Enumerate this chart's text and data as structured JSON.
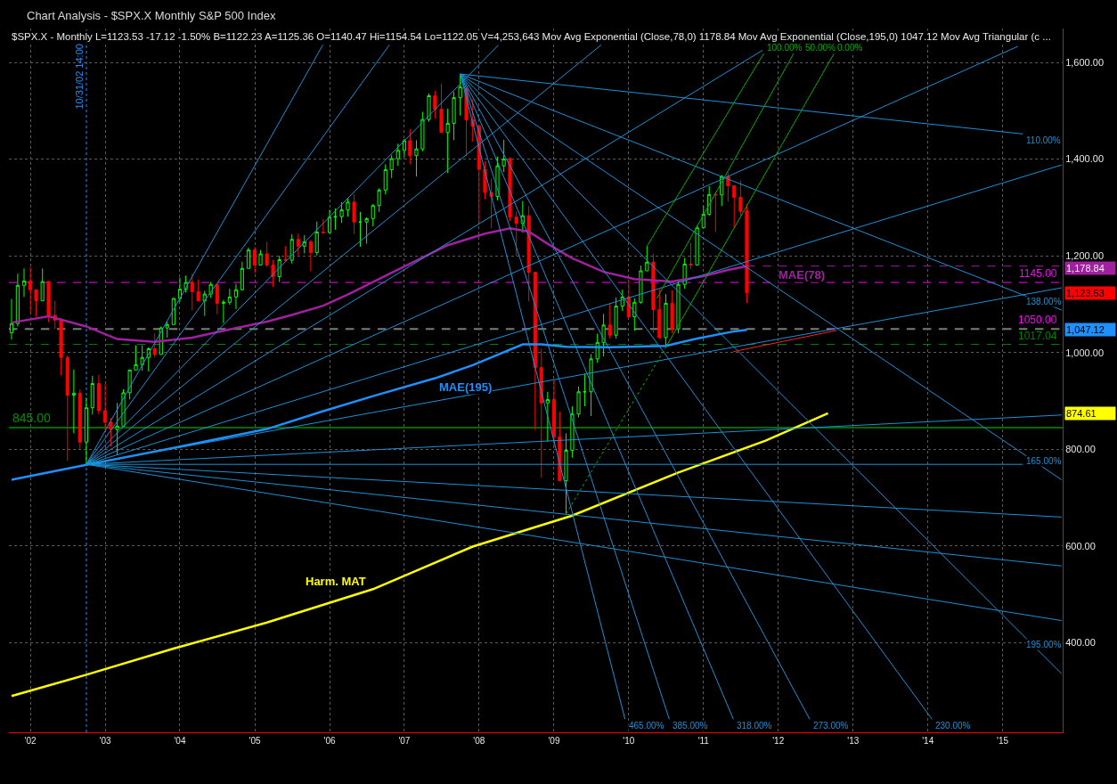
{
  "chart_data": {
    "type": "candlestick",
    "title": "Chart Analysis - $SPX.X Monthly S&P 500 Index",
    "subtitle": "$SPX.X - Monthly L=1123.53 -17.12 -1.50% B=1122.23 A=1125.36 O=1140.47 Hi=1154.54 Lo=1122.05 V=4,253,643 Mov Avg Exponential (Close,78,0) 1178.84 Mov Avg Exponential (Close,195,0) 1047.12 Mov Avg Triangular (c ...",
    "x": [
      "2001-10-31",
      "2001-11-30",
      "2001-12-31",
      "2002-01-31",
      "2002-02-28",
      "2002-03-31",
      "2002-04-30",
      "2002-05-31",
      "2002-06-30",
      "2002-07-31",
      "2002-08-31",
      "2002-09-30",
      "2002-10-31",
      "2002-11-30",
      "2002-12-31",
      "2003-01-31",
      "2003-02-28",
      "2003-03-31",
      "2003-04-30",
      "2003-05-31",
      "2003-06-30",
      "2003-07-31",
      "2003-08-31",
      "2003-09-30",
      "2003-10-31",
      "2003-11-30",
      "2003-12-31",
      "2004-01-31",
      "2004-02-29",
      "2004-03-31",
      "2004-04-30",
      "2004-05-31",
      "2004-06-30",
      "2004-07-31",
      "2004-08-31",
      "2004-09-30",
      "2004-10-31",
      "2004-11-30",
      "2004-12-31",
      "2005-01-31",
      "2005-02-28",
      "2005-03-31",
      "2005-04-30",
      "2005-05-31",
      "2005-06-30",
      "2005-07-31",
      "2005-08-31",
      "2005-09-30",
      "2005-10-31",
      "2005-11-30",
      "2005-12-31",
      "2006-01-31",
      "2006-02-28",
      "2006-03-31",
      "2006-04-30",
      "2006-05-31",
      "2006-06-30",
      "2006-07-31",
      "2006-08-31",
      "2006-09-30",
      "2006-10-31",
      "2006-11-30",
      "2006-12-31",
      "2007-01-31",
      "2007-02-28",
      "2007-03-31",
      "2007-04-30",
      "2007-05-31",
      "2007-06-30",
      "2007-07-31",
      "2007-08-31",
      "2007-09-30",
      "2007-10-31",
      "2007-11-30",
      "2007-12-31",
      "2008-01-31",
      "2008-02-29",
      "2008-03-31",
      "2008-04-30",
      "2008-05-31",
      "2008-06-30",
      "2008-07-31",
      "2008-08-31",
      "2008-09-30",
      "2008-10-31",
      "2008-11-30",
      "2008-12-31",
      "2009-01-31",
      "2009-02-28",
      "2009-03-31",
      "2009-04-30",
      "2009-05-31",
      "2009-06-30",
      "2009-07-31",
      "2009-08-31",
      "2009-09-30",
      "2009-10-31",
      "2009-11-30",
      "2009-12-31",
      "2010-01-31",
      "2010-02-28",
      "2010-03-31",
      "2010-04-30",
      "2010-05-31",
      "2010-06-30",
      "2010-07-31",
      "2010-08-31",
      "2010-09-30",
      "2010-10-31",
      "2010-11-30",
      "2010-12-31",
      "2011-01-31",
      "2011-02-28",
      "2011-03-31",
      "2011-04-30",
      "2011-05-31",
      "2011-06-30",
      "2011-07-31",
      "2011-08-31"
    ],
    "ohlc": [
      [
        1041,
        1111,
        1027,
        1060
      ],
      [
        1060,
        1163,
        1054,
        1139
      ],
      [
        1139,
        1174,
        1115,
        1148
      ],
      [
        1148,
        1177,
        1082,
        1130
      ],
      [
        1130,
        1130,
        1074,
        1107
      ],
      [
        1107,
        1174,
        1107,
        1147
      ],
      [
        1147,
        1148,
        1063,
        1077
      ],
      [
        1077,
        1107,
        1049,
        1067
      ],
      [
        1067,
        1071,
        953,
        990
      ],
      [
        990,
        994,
        776,
        912
      ],
      [
        912,
        965,
        833,
        916
      ],
      [
        916,
        924,
        800,
        815
      ],
      [
        815,
        907,
        769,
        886
      ],
      [
        886,
        952,
        872,
        936
      ],
      [
        936,
        954,
        872,
        880
      ],
      [
        880,
        935,
        840,
        856
      ],
      [
        856,
        865,
        806,
        841
      ],
      [
        841,
        896,
        789,
        848
      ],
      [
        848,
        924,
        848,
        917
      ],
      [
        917,
        965,
        903,
        964
      ],
      [
        964,
        1015,
        964,
        975
      ],
      [
        975,
        1015,
        962,
        990
      ],
      [
        990,
        1011,
        961,
        1008
      ],
      [
        1008,
        1040,
        990,
        996
      ],
      [
        996,
        1054,
        996,
        1051
      ],
      [
        1051,
        1064,
        1031,
        1058
      ],
      [
        1058,
        1113,
        1058,
        1112
      ],
      [
        1112,
        1155,
        1105,
        1131
      ],
      [
        1131,
        1159,
        1124,
        1145
      ],
      [
        1145,
        1163,
        1087,
        1126
      ],
      [
        1126,
        1151,
        1107,
        1107
      ],
      [
        1107,
        1128,
        1076,
        1121
      ],
      [
        1121,
        1146,
        1113,
        1141
      ],
      [
        1141,
        1141,
        1079,
        1102
      ],
      [
        1102,
        1109,
        1061,
        1104
      ],
      [
        1104,
        1132,
        1099,
        1115
      ],
      [
        1115,
        1142,
        1090,
        1130
      ],
      [
        1130,
        1188,
        1128,
        1174
      ],
      [
        1174,
        1217,
        1174,
        1212
      ],
      [
        1212,
        1218,
        1164,
        1181
      ],
      [
        1181,
        1212,
        1181,
        1204
      ],
      [
        1204,
        1229,
        1177,
        1181
      ],
      [
        1181,
        1192,
        1136,
        1157
      ],
      [
        1157,
        1200,
        1146,
        1192
      ],
      [
        1192,
        1220,
        1188,
        1191
      ],
      [
        1191,
        1245,
        1184,
        1234
      ],
      [
        1234,
        1246,
        1201,
        1220
      ],
      [
        1220,
        1243,
        1205,
        1229
      ],
      [
        1229,
        1233,
        1168,
        1207
      ],
      [
        1207,
        1271,
        1201,
        1249
      ],
      [
        1249,
        1276,
        1247,
        1248
      ],
      [
        1248,
        1295,
        1246,
        1280
      ],
      [
        1280,
        1298,
        1254,
        1281
      ],
      [
        1281,
        1311,
        1268,
        1295
      ],
      [
        1295,
        1318,
        1281,
        1311
      ],
      [
        1311,
        1327,
        1245,
        1270
      ],
      [
        1270,
        1291,
        1219,
        1270
      ],
      [
        1270,
        1280,
        1225,
        1277
      ],
      [
        1277,
        1307,
        1261,
        1304
      ],
      [
        1304,
        1340,
        1291,
        1336
      ],
      [
        1336,
        1389,
        1327,
        1378
      ],
      [
        1378,
        1408,
        1361,
        1401
      ],
      [
        1401,
        1432,
        1386,
        1418
      ],
      [
        1418,
        1442,
        1404,
        1438
      ],
      [
        1438,
        1462,
        1389,
        1407
      ],
      [
        1407,
        1439,
        1364,
        1421
      ],
      [
        1421,
        1498,
        1416,
        1482
      ],
      [
        1482,
        1536,
        1477,
        1531
      ],
      [
        1531,
        1541,
        1484,
        1503
      ],
      [
        1503,
        1556,
        1454,
        1455
      ],
      [
        1455,
        1504,
        1371,
        1474
      ],
      [
        1474,
        1539,
        1439,
        1527
      ],
      [
        1527,
        1576,
        1490,
        1549
      ],
      [
        1546,
        1546,
        1406,
        1481
      ],
      [
        1481,
        1524,
        1436,
        1468
      ],
      [
        1468,
        1472,
        1270,
        1379
      ],
      [
        1379,
        1396,
        1317,
        1331
      ],
      [
        1331,
        1360,
        1257,
        1323
      ],
      [
        1323,
        1405,
        1315,
        1386
      ],
      [
        1386,
        1440,
        1373,
        1400
      ],
      [
        1400,
        1404,
        1272,
        1280
      ],
      [
        1280,
        1292,
        1200,
        1267
      ],
      [
        1267,
        1313,
        1248,
        1283
      ],
      [
        1283,
        1303,
        1106,
        1166
      ],
      [
        1166,
        1167,
        840,
        969
      ],
      [
        969,
        1008,
        741,
        896
      ],
      [
        896,
        919,
        816,
        903
      ],
      [
        903,
        944,
        804,
        826
      ],
      [
        826,
        878,
        735,
        735
      ],
      [
        735,
        833,
        667,
        798
      ],
      [
        798,
        889,
        783,
        873
      ],
      [
        873,
        930,
        866,
        919
      ],
      [
        919,
        956,
        889,
        919
      ],
      [
        919,
        997,
        869,
        987
      ],
      [
        987,
        1039,
        979,
        1021
      ],
      [
        1021,
        1080,
        992,
        1057
      ],
      [
        1057,
        1101,
        1029,
        1036
      ],
      [
        1036,
        1114,
        1029,
        1096
      ],
      [
        1096,
        1130,
        1086,
        1115
      ],
      [
        1115,
        1150,
        1072,
        1074
      ],
      [
        1074,
        1112,
        1045,
        1104
      ],
      [
        1104,
        1180,
        1101,
        1169
      ],
      [
        1169,
        1220,
        1169,
        1187
      ],
      [
        1187,
        1205,
        1041,
        1089
      ],
      [
        1089,
        1131,
        1028,
        1031
      ],
      [
        1031,
        1121,
        1011,
        1102
      ],
      [
        1102,
        1129,
        1040,
        1049
      ],
      [
        1049,
        1149,
        1040,
        1141
      ],
      [
        1141,
        1196,
        1132,
        1183
      ],
      [
        1183,
        1227,
        1173,
        1181
      ],
      [
        1181,
        1263,
        1181,
        1258
      ],
      [
        1258,
        1303,
        1258,
        1286
      ],
      [
        1286,
        1344,
        1283,
        1327
      ],
      [
        1327,
        1332,
        1249,
        1326
      ],
      [
        1326,
        1367,
        1303,
        1364
      ],
      [
        1364,
        1371,
        1312,
        1345
      ],
      [
        1345,
        1345,
        1258,
        1321
      ],
      [
        1321,
        1356,
        1283,
        1292
      ],
      [
        1293,
        1307,
        1102,
        1123.53
      ]
    ],
    "colors": [
      "#00ff00",
      "#00ff00",
      "#00ff00",
      "#ff0000",
      "#ff0000",
      "#00ff00",
      "#ff0000",
      "#ff0000",
      "#ff0000",
      "#ff0000",
      "#00ff00",
      "#ff0000",
      "#00ff00",
      "#00ff00",
      "#ff0000",
      "#ff0000",
      "#ff0000",
      "#00ff00",
      "#00ff00",
      "#00ff00",
      "#00ff00",
      "#00ff00",
      "#00ff00",
      "#ff0000",
      "#00ff00",
      "#00ff00",
      "#00ff00",
      "#00ff00",
      "#00ff00",
      "#ff0000",
      "#ff0000",
      "#00ff00",
      "#00ff00",
      "#ff0000",
      "#00ff00",
      "#00ff00",
      "#00ff00",
      "#00ff00",
      "#00ff00",
      "#ff0000",
      "#00ff00",
      "#ff0000",
      "#ff0000",
      "#00ff00",
      "#ff0000",
      "#00ff00",
      "#ff0000",
      "#00ff00",
      "#ff0000",
      "#00ff00",
      "#ff0000",
      "#00ff00",
      "#00ff00",
      "#00ff00",
      "#00ff00",
      "#ff0000",
      "#00ff00",
      "#00ff00",
      "#00ff00",
      "#00ff00",
      "#00ff00",
      "#00ff00",
      "#00ff00",
      "#00ff00",
      "#ff0000",
      "#00ff00",
      "#00ff00",
      "#00ff00",
      "#ff0000",
      "#ff0000",
      "#00ff00",
      "#00ff00",
      "#00ff00",
      "#ff0000",
      "#ff0000",
      "#ff0000",
      "#ff0000",
      "#ff0000",
      "#00ff00",
      "#00ff00",
      "#ff0000",
      "#ff0000",
      "#00ff00",
      "#ff0000",
      "#ff0000",
      "#ff0000",
      "#00ff00",
      "#ff0000",
      "#ff0000",
      "#00ff00",
      "#00ff00",
      "#00ff00",
      "#00ff00",
      "#00ff00",
      "#00ff00",
      "#00ff00",
      "#ff0000",
      "#00ff00",
      "#00ff00",
      "#ff0000",
      "#00ff00",
      "#00ff00",
      "#00ff00",
      "#ff0000",
      "#ff0000",
      "#00ff00",
      "#ff0000",
      "#00ff00",
      "#00ff00",
      "#ff0000",
      "#00ff00",
      "#00ff00",
      "#00ff00",
      "#ff0000",
      "#00ff00",
      "#ff0000",
      "#ff0000",
      "#ff0000",
      "#ff0000"
    ],
    "value_labels": [
      null,
      null,
      null,
      null,
      null,
      null,
      null,
      null,
      null,
      null,
      null,
      null,
      null,
      null,
      null,
      null,
      null,
      null,
      null,
      null,
      null,
      null,
      null,
      null,
      null,
      null,
      null,
      null,
      null,
      null,
      null,
      null,
      null,
      null,
      null,
      null,
      null,
      null,
      null,
      null,
      null,
      null,
      null,
      null,
      null,
      null,
      null,
      null,
      null,
      null,
      null,
      null,
      null,
      null,
      null,
      null,
      null,
      null,
      null,
      null,
      null,
      null,
      null,
      null,
      null,
      null,
      null,
      null,
      null,
      null,
      null,
      null,
      null,
      null,
      null,
      null,
      null,
      null,
      null,
      null,
      null,
      null,
      null,
      null,
      null,
      null,
      null,
      null,
      null,
      null,
      null,
      null,
      null,
      null,
      null,
      null,
      null,
      null,
      null,
      null,
      null,
      null,
      null,
      null,
      null,
      null,
      null,
      null,
      null,
      null,
      null,
      null,
      null,
      null,
      null,
      null,
      null,
      null,
      "1,123.53"
    ],
    "series": [
      {
        "type": "line",
        "name": "MAE(78)",
        "color": "#a020a0",
        "x": [
          "2001-10-31",
          "2002-04-30",
          "2002-10-31",
          "2003-03-31",
          "2003-09-30",
          "2004-03-31",
          "2004-09-30",
          "2005-03-31",
          "2005-07-31",
          "2005-12-31",
          "2006-04-30",
          "2006-11-30",
          "2007-08-31",
          "2008-02-29",
          "2008-06-30",
          "2008-09-30",
          "2008-12-31",
          "2009-04-30",
          "2009-09-30",
          "2010-02-28",
          "2010-08-31",
          "2011-01-31",
          "2011-05-31",
          "2011-08-31"
        ],
        "values": [
          1062,
          1075,
          1054,
          1028,
          1022,
          1031,
          1048,
          1064,
          1078,
          1097,
          1120,
          1165,
          1222,
          1246,
          1257,
          1250,
          1225,
          1195,
          1167,
          1152,
          1147,
          1158,
          1171,
          1178.84
        ]
      },
      {
        "type": "line",
        "name": "MAE(195)",
        "color": "#1e90ff",
        "x": [
          "2001-10-31",
          "2002-10-31",
          "2003-12-31",
          "2005-03-31",
          "2005-12-31",
          "2006-08-31",
          "2007-06-30",
          "2007-12-31",
          "2008-08-31",
          "2008-11-30",
          "2009-03-31",
          "2009-10-31",
          "2010-07-31",
          "2010-12-31",
          "2011-06-30",
          "2011-08-31"
        ],
        "values": [
          737,
          768,
          803,
          842,
          879,
          910,
          947,
          974,
          1017,
          1017,
          1012,
          1011,
          1014,
          1029,
          1044,
          1047.12
        ]
      },
      {
        "type": "line",
        "name": "Harm. MAT",
        "color": "#ffff00",
        "x": [
          "2001-10-31",
          "2002-10-31",
          "2003-12-31",
          "2005-03-31",
          "2006-08-31",
          "2007-12-31",
          "2009-04-30",
          "2010-09-30",
          "2011-11-30",
          "2012-09-30"
        ],
        "values": [
          290,
          334,
          388,
          442,
          511,
          599,
          663,
          752,
          818,
          874.61
        ]
      },
      {
        "type": "line",
        "color": "#a020a0",
        "line_style": "dashed",
        "x": [
          "2011-08-31",
          "2015-11-15"
        ],
        "values": [
          1178.84,
          1178.84
        ]
      },
      {
        "type": "line",
        "color": "#1e90d6",
        "x": [
          "2002-10-31",
          "2005-12-29"
        ],
        "values": [
          769,
          1636
        ]
      },
      {
        "type": "line",
        "color": "#1e90d6",
        "x": [
          "2002-10-31",
          "2006-11-19"
        ],
        "values": [
          769,
          1636
        ]
      },
      {
        "type": "line",
        "color": "#1e90d6",
        "x": [
          "2002-10-31",
          "2008-05-05"
        ],
        "values": [
          769,
          1636
        ]
      },
      {
        "type": "line",
        "color": "#1e90d6",
        "x": [
          "2002-10-31",
          "2009-09-18"
        ],
        "values": [
          769,
          1636
        ]
      },
      {
        "type": "line",
        "color": "#1e90d6",
        "x": [
          "2002-10-31",
          "2011-11-15"
        ],
        "values": [
          769,
          1625
        ]
      },
      {
        "type": "line",
        "color": "#1e90d6",
        "x": [
          "2002-10-31",
          "2015-04-15"
        ],
        "values": [
          769,
          1633
        ]
      },
      {
        "type": "line",
        "color": "#1e90d6",
        "x": [
          "2002-10-31",
          "2015-11-15"
        ],
        "values": [
          769,
          1388
        ]
      },
      {
        "type": "line",
        "color": "#1e90d6",
        "x": [
          "2002-10-31",
          "2015-11-15"
        ],
        "values": [
          769,
          1134
        ]
      },
      {
        "type": "line",
        "color": "#1e90d6",
        "x": [
          "2002-10-31",
          "2015-11-15"
        ],
        "values": [
          769,
          871
        ]
      },
      {
        "type": "line",
        "color": "#1e90d6",
        "x": [
          "2002-10-31",
          "2015-05-10"
        ],
        "values": [
          769,
          769
        ]
      },
      {
        "type": "line",
        "color": "#1e90d6",
        "x": [
          "2002-10-31",
          "2015-11-15"
        ],
        "values": [
          769,
          660
        ]
      },
      {
        "type": "line",
        "color": "#1e90d6",
        "x": [
          "2002-10-31",
          "2015-11-15"
        ],
        "values": [
          769,
          559
        ]
      },
      {
        "type": "line",
        "color": "#1e90d6",
        "x": [
          "2002-10-31",
          "2015-11-15"
        ],
        "values": [
          769,
          446
        ]
      },
      {
        "type": "line",
        "color": "#1e90d6",
        "x": [
          "2007-10-31",
          "2015-05-10"
        ],
        "values": [
          1576,
          1452
        ]
      },
      {
        "type": "line",
        "color": "#1e90d6",
        "x": [
          "2007-10-31",
          "2015-11-15"
        ],
        "values": [
          1576,
          1088
        ]
      },
      {
        "type": "line",
        "color": "#1e90d6",
        "x": [
          "2007-10-31",
          "2015-11-15"
        ],
        "values": [
          1576,
          737
        ]
      },
      {
        "type": "line",
        "color": "#1e90d6",
        "x": [
          "2007-10-31",
          "2015-11-15"
        ],
        "values": [
          1576,
          336
        ]
      },
      {
        "type": "line",
        "color": "#1e90d6",
        "x": [
          "2007-10-31",
          "2014-02-20"
        ],
        "values": [
          1576,
          242
        ]
      },
      {
        "type": "line",
        "color": "#1e90d6",
        "x": [
          "2007-10-31",
          "2012-07-03"
        ],
        "values": [
          1576,
          242
        ]
      },
      {
        "type": "line",
        "color": "#1e90d6",
        "x": [
          "2007-10-31",
          "2011-06-26"
        ],
        "values": [
          1576,
          242
        ]
      },
      {
        "type": "line",
        "color": "#1e90d6",
        "x": [
          "2007-10-31",
          "2010-08-17"
        ],
        "values": [
          1576,
          242
        ]
      },
      {
        "type": "line",
        "color": "#1e90d6",
        "x": [
          "2007-10-31",
          "2010-01-13"
        ],
        "values": [
          1576,
          242
        ]
      },
      {
        "type": "line",
        "color": "#00b000",
        "line_style": "dotted",
        "x": [
          "2009-03-31",
          "2010-07-31"
        ],
        "values": [
          667,
          1011
        ]
      },
      {
        "type": "line",
        "color": "#00b000",
        "x": [
          "2010-07-31",
          "2012-10-29"
        ],
        "values": [
          1011,
          1618
        ]
      },
      {
        "type": "line",
        "color": "#00b000",
        "x": [
          "2010-06-17",
          "2012-04-15"
        ],
        "values": [
          1112,
          1618
        ]
      },
      {
        "type": "line",
        "color": "#00b000",
        "x": [
          "2010-04-30",
          "2011-11-21"
        ],
        "values": [
          1220,
          1618
        ]
      },
      {
        "type": "line",
        "color": "#ff2020",
        "x": [
          "2011-06-26",
          "2012-11-12"
        ],
        "values": [
          1002,
          1046
        ]
      }
    ],
    "xlim": [
      "2001-10-18",
      "2015-11-20"
    ],
    "xticks": [
      {
        "value": "2002-01-31",
        "label": "'02"
      },
      {
        "value": "2003-01-31",
        "label": "'03"
      },
      {
        "value": "2004-01-31",
        "label": "'04"
      },
      {
        "value": "2005-01-31",
        "label": "'05"
      },
      {
        "value": "2006-01-31",
        "label": "'06"
      },
      {
        "value": "2007-01-31",
        "label": "'07"
      },
      {
        "value": "2008-01-31",
        "label": "'08"
      },
      {
        "value": "2009-01-31",
        "label": "'09"
      },
      {
        "value": "2010-01-31",
        "label": "'10"
      },
      {
        "value": "2011-01-31",
        "label": "'11"
      },
      {
        "value": "2012-01-31",
        "label": "'12"
      },
      {
        "value": "2013-01-31",
        "label": "'13"
      },
      {
        "value": "2014-01-31",
        "label": "'14"
      },
      {
        "value": "2015-01-31",
        "label": "'15"
      }
    ],
    "ylim": [
      215,
      1670
    ],
    "yticks": [
      {
        "value": 400,
        "label": "400.00"
      },
      {
        "value": 600,
        "label": "600.00"
      },
      {
        "value": 800,
        "label": "800.00"
      },
      {
        "value": 1000,
        "label": "1,000.00"
      },
      {
        "value": 1200,
        "label": "1,200.00"
      },
      {
        "value": 1400,
        "label": "1,400.00"
      },
      {
        "value": 1600,
        "label": "1,600.00"
      }
    ],
    "ref_lines": [
      {
        "axis": "y",
        "value": 845,
        "label": "845.00",
        "color": "#009000",
        "line_style": "solid"
      },
      {
        "axis": "y",
        "value": 1145,
        "label": "1145.00",
        "color": "#ff00ff",
        "line_style": "dashed"
      },
      {
        "axis": "y",
        "value": 1050,
        "label": "1050.00",
        "color": "#ff00ff",
        "line_style": "dashed"
      },
      {
        "axis": "y",
        "value": 1048,
        "color": "#00ff00",
        "line_style": "dashed"
      },
      {
        "axis": "y",
        "value": 1017.04,
        "label": "1017.04",
        "color": "#008000",
        "line_style": "dashed"
      },
      {
        "axis": "x",
        "value": "2002-10-31T14:00",
        "label": "10/31/02 14:00",
        "color": "#1e90ff",
        "line_style": "dotted"
      }
    ],
    "annotations": [
      {
        "text": "110.00%",
        "x": "2015-05-10",
        "y": 1452
      },
      {
        "text": "138.00%",
        "x": "2015-05-10",
        "y": 1120
      },
      {
        "text": "165.00%",
        "x": "2015-05-10",
        "y": 790
      },
      {
        "text": "195.00%",
        "x": "2015-05-10",
        "y": 410
      },
      {
        "text": "465.00%",
        "x": "2010-01-13",
        "y": 242
      },
      {
        "text": "385.00%",
        "x": "2010-08-17",
        "y": 242
      },
      {
        "text": "318.00%",
        "x": "2011-06-26",
        "y": 242
      },
      {
        "text": "273.00%",
        "x": "2012-07-03",
        "y": 242
      },
      {
        "text": "230.00%",
        "x": "2014-02-20",
        "y": 242
      },
      {
        "text": "100.00%",
        "x": "2011-11-21",
        "y": 1618
      },
      {
        "text": "50.00%",
        "x": "2012-04-15",
        "y": 1618
      },
      {
        "text": "0.00%",
        "x": "2012-10-29",
        "y": 1618
      },
      {
        "text": "1,178.84",
        "x": "2015-11-20",
        "y": 1178.84
      },
      {
        "text": "1,047.12",
        "x": "2015-11-20",
        "y": 1047.12
      },
      {
        "text": "874.61",
        "x": "2015-11-20",
        "y": 874.61
      }
    ],
    "grid": true
  }
}
